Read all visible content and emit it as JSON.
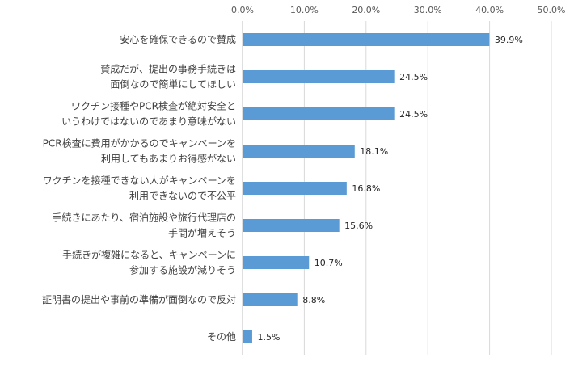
{
  "chart_data": {
    "type": "bar",
    "orientation": "horizontal",
    "title": "",
    "xlabel": "",
    "ylabel": "",
    "xlim": [
      0,
      50
    ],
    "x_ticks": [
      "0.0%",
      "10.0%",
      "20.0%",
      "30.0%",
      "40.0%",
      "50.0%"
    ],
    "x_axis_position": "top",
    "grid": true,
    "legend": "none",
    "bar_color": "#5b9bd5",
    "categories": [
      [
        "安心を確保できるので賛成"
      ],
      [
        "賛成だが、提出の事務手続きは",
        "面倒なので簡単にしてほしい"
      ],
      [
        "ワクチン接種やPCR検査が絶対安全と",
        "いうわけではないのであまり意味がない"
      ],
      [
        "PCR検査に費用がかかるのでキャンペーンを",
        "利用してもあまりお得感がない"
      ],
      [
        "ワクチンを接種できない人がキャンペーンを",
        "利用できないので不公平"
      ],
      [
        "手続きにあたり、宿泊施設や旅行代理店の",
        "手間が増えそう"
      ],
      [
        "手続きが複雑になると、キャンペーンに",
        "参加する施設が減りそう"
      ],
      [
        "証明書の提出や事前の準備が面倒なので反対"
      ],
      [
        "その他"
      ]
    ],
    "values": [
      39.9,
      24.5,
      24.5,
      18.1,
      16.8,
      15.6,
      10.7,
      8.8,
      1.5
    ],
    "value_labels": [
      "39.9%",
      "24.5%",
      "24.5%",
      "18.1%",
      "16.8%",
      "15.6%",
      "10.7%",
      "8.8%",
      "1.5%"
    ]
  }
}
